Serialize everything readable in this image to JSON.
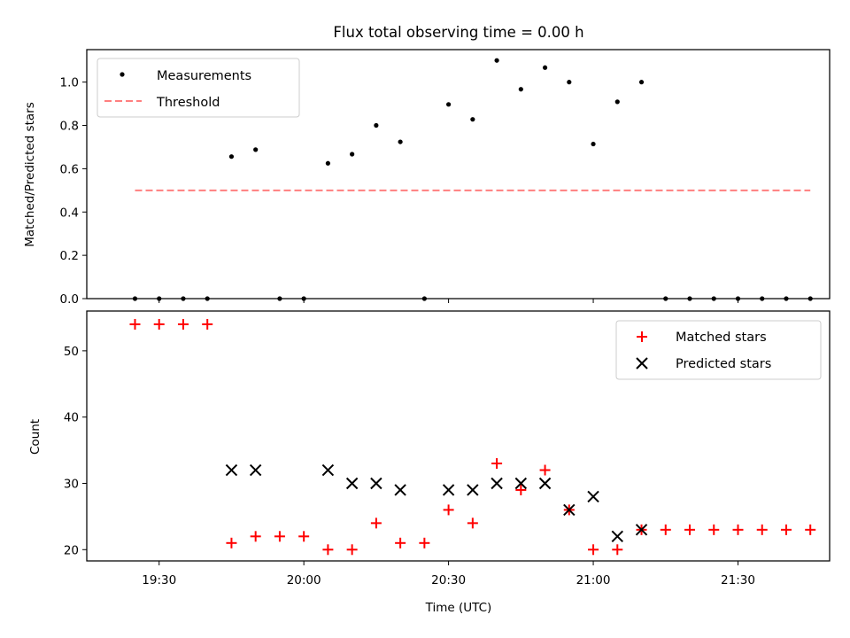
{
  "chart_data": {
    "title": "Flux total observing time = 0.00 h",
    "xlabel": "Time (UTC)",
    "x_tick_labels": [
      "19:30",
      "20:00",
      "20:30",
      "21:00",
      "21:30"
    ],
    "x_ticks": [
      "19:30",
      "20:00",
      "20:30",
      "21:00",
      "21:30"
    ],
    "xlim": [
      "19:15",
      "21:49"
    ],
    "times": [
      "19:25",
      "19:30",
      "19:35",
      "19:40",
      "19:45",
      "19:50",
      "19:55",
      "20:00",
      "20:05",
      "20:10",
      "20:15",
      "20:20",
      "20:25",
      "20:30",
      "20:35",
      "20:40",
      "20:45",
      "20:50",
      "20:55",
      "21:00",
      "21:05",
      "21:10",
      "21:15",
      "21:20",
      "21:25",
      "21:30",
      "21:35",
      "21:40",
      "21:45"
    ],
    "panels": [
      {
        "type": "scatter",
        "ylabel": "Matched/Predicted stars",
        "ylim": [
          0,
          1.15
        ],
        "y_ticks": [
          0.0,
          0.2,
          0.4,
          0.6,
          0.8,
          1.0
        ],
        "y_tick_labels": [
          "0.0",
          "0.2",
          "0.4",
          "0.6",
          "0.8",
          "1.0"
        ],
        "legend_position": "upper-left",
        "series": [
          {
            "name": "Measurements",
            "marker": "dot",
            "color": "#000000",
            "values": [
              0,
              0,
              0,
              0,
              0.656,
              0.688,
              0,
              0,
              0.625,
              0.667,
              0.8,
              0.724,
              0,
              0.897,
              0.828,
              1.1,
              0.967,
              1.067,
              1.0,
              0.714,
              0.909,
              1.0,
              0,
              0,
              0,
              0,
              0,
              0,
              0
            ]
          }
        ],
        "threshold": {
          "name": "Threshold",
          "value": 0.5,
          "x_start": "19:25",
          "x_end": "21:45",
          "color": "#ff7f7f",
          "style": "dashed"
        }
      },
      {
        "type": "scatter",
        "ylabel": "Count",
        "ylim": [
          18.3,
          56
        ],
        "y_ticks": [
          20,
          30,
          40,
          50
        ],
        "y_tick_labels": [
          "20",
          "30",
          "40",
          "50"
        ],
        "legend_position": "upper-right",
        "series": [
          {
            "name": "Matched stars",
            "marker": "plus",
            "color": "#ff0000",
            "values": [
              54,
              54,
              54,
              54,
              21,
              22,
              22,
              22,
              20,
              20,
              24,
              21,
              21,
              26,
              24,
              33,
              29,
              32,
              26,
              20,
              20,
              23,
              23,
              23,
              23,
              23,
              23,
              23,
              23
            ]
          },
          {
            "name": "Predicted stars",
            "marker": "x",
            "color": "#000000",
            "values": [
              null,
              null,
              null,
              null,
              32,
              32,
              null,
              null,
              32,
              30,
              30,
              29,
              null,
              29,
              29,
              30,
              30,
              30,
              26,
              28,
              22,
              23,
              null,
              null,
              null,
              null,
              null,
              null,
              null
            ]
          }
        ]
      }
    ]
  }
}
